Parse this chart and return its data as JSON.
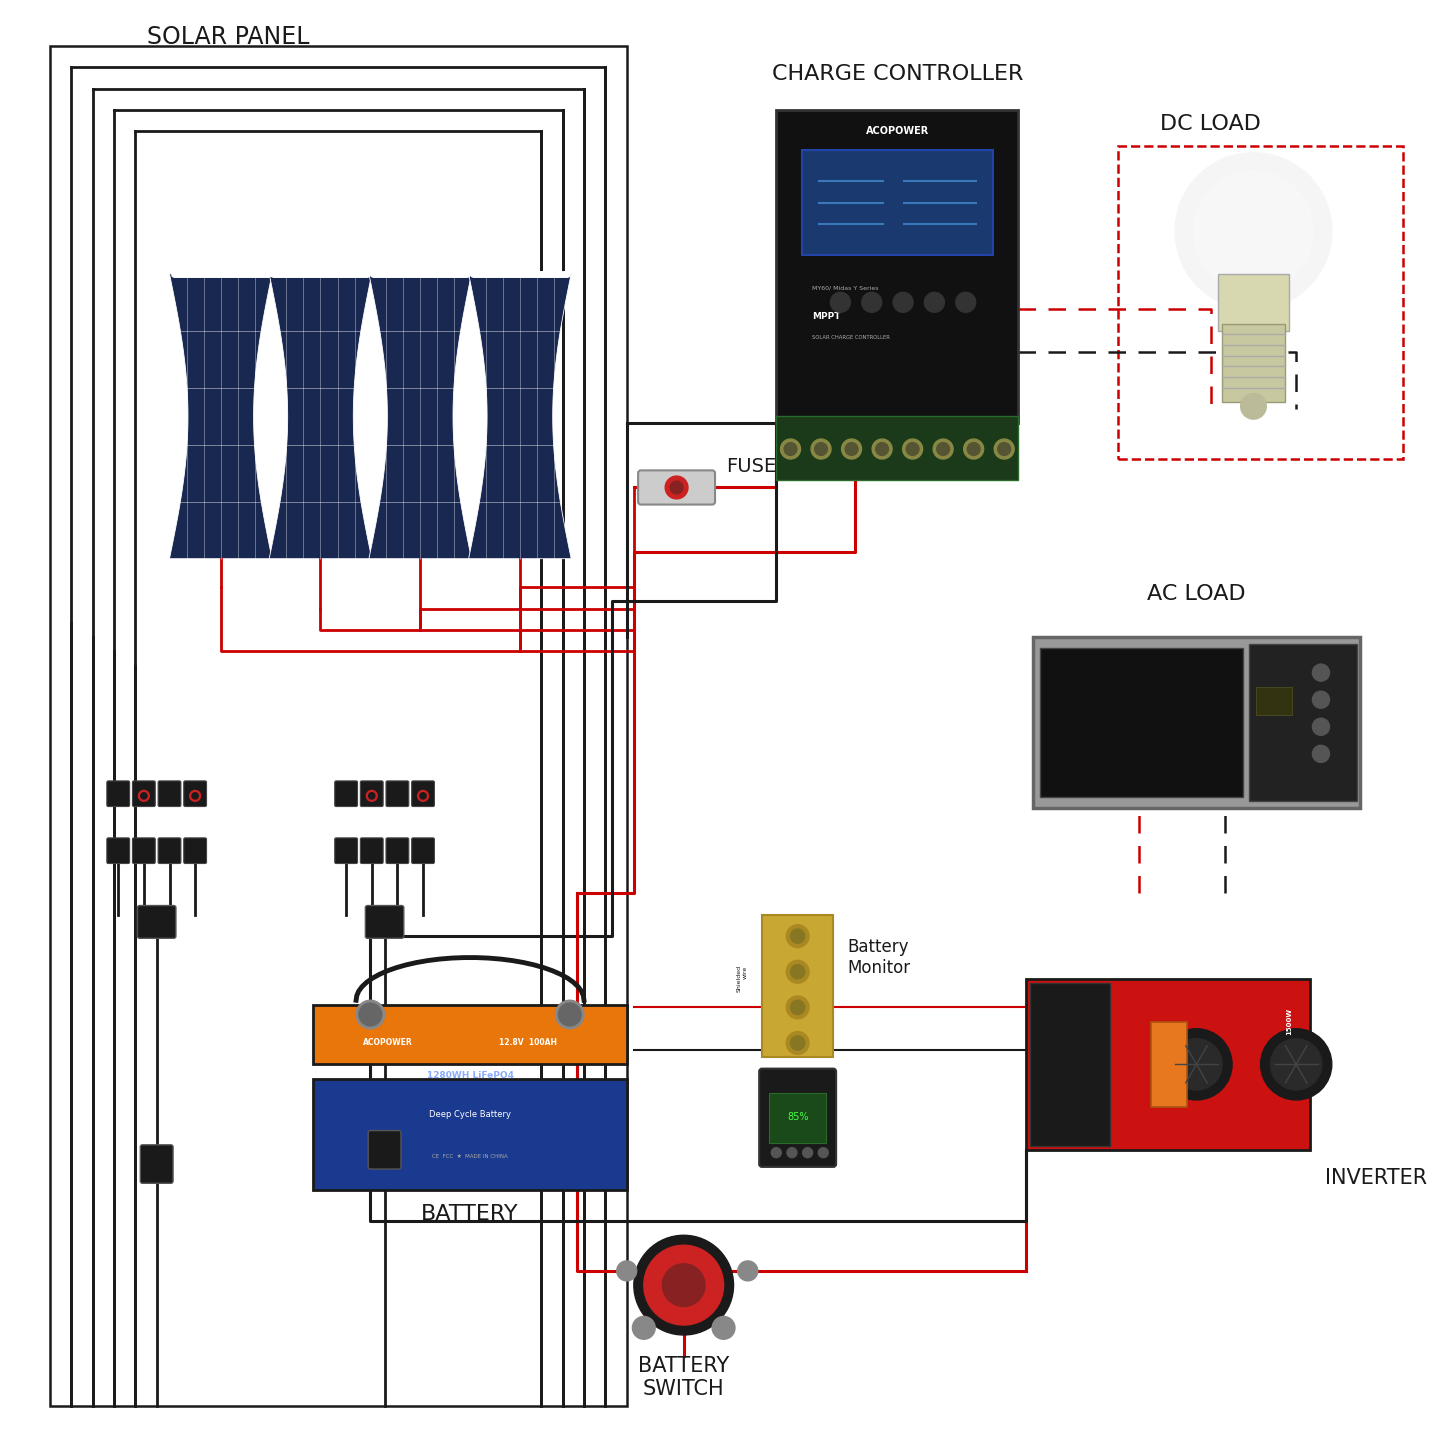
{
  "bg_color": "#ffffff",
  "labels": {
    "solar_panel": "SOLAR PANEL",
    "charge_controller": "CHARGE CONTROLLER",
    "dc_load": "DC LOAD",
    "fuse": "FUSE",
    "battery": "BATTERY",
    "battery_monitor": "Battery\nMonitor",
    "battery_switch": "BATTERY\nSWITCH",
    "inverter": "INVERTER",
    "ac_load": "AC LOAD"
  },
  "colors": {
    "black_wire": "#1a1a1a",
    "red_wire": "#cc0000",
    "solar_panel_body": "#192850",
    "text_color": "#1a1a1a"
  }
}
